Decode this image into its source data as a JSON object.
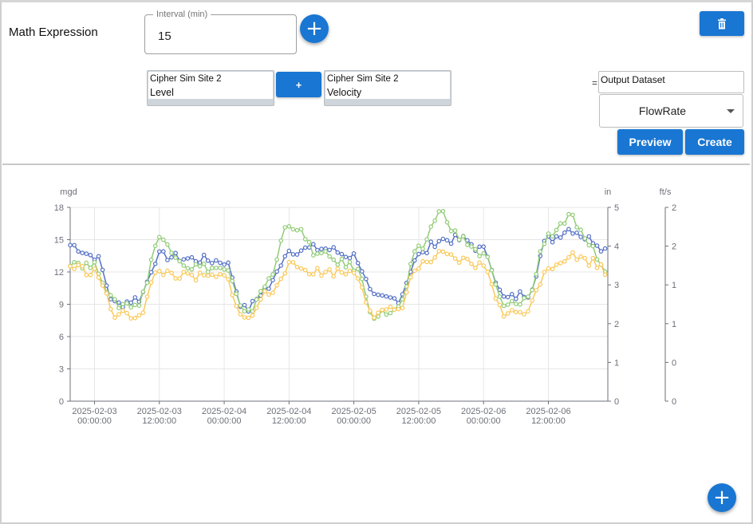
{
  "header": {
    "title": "Math Expression",
    "interval_label": "Interval (min)",
    "interval_value": "15",
    "add_icon": "plus-icon",
    "delete_icon": "trash-icon"
  },
  "expression": {
    "left": {
      "site": "Cipher Sim Site 2",
      "measure": "Level"
    },
    "operator": "+",
    "right": {
      "site": "Cipher Sim Site 2",
      "measure": "Velocity"
    },
    "equals": "=",
    "output_label": "Output Dataset",
    "output_select_value": "FlowRate",
    "preview_label": "Preview",
    "create_label": "Create"
  },
  "colors": {
    "accent": "#1976d2",
    "series_blue": "#5470c6",
    "series_green": "#91cc75",
    "series_yellow": "#fac858"
  },
  "chart_data": {
    "type": "line",
    "title": "",
    "x_tick_labels": [
      [
        "2025-02-03",
        "00:00:00"
      ],
      [
        "2025-02-03",
        "12:00:00"
      ],
      [
        "2025-02-04",
        "00:00:00"
      ],
      [
        "2025-02-04",
        "12:00:00"
      ],
      [
        "2025-02-05",
        "00:00:00"
      ],
      [
        "2025-02-05",
        "12:00:00"
      ],
      [
        "2025-02-06",
        "00:00:00"
      ],
      [
        "2025-02-06",
        "12:00:00"
      ]
    ],
    "x_range_hours": [
      -4.5,
      95
    ],
    "axes": [
      {
        "unit": "mgd",
        "ticks": [
          "0",
          "3",
          "6",
          "9",
          "12",
          "15",
          "18"
        ],
        "ylim": [
          0,
          18
        ]
      },
      {
        "unit": "in",
        "ticks": [
          "0",
          "1",
          "2",
          "3",
          "4",
          "5"
        ],
        "ylim": [
          0,
          5
        ]
      },
      {
        "unit": "ft/s",
        "ticks": [
          "0",
          "0",
          "1",
          "1",
          "2",
          "2"
        ],
        "ylim": [
          0,
          2
        ]
      }
    ],
    "grid": true,
    "series": [
      {
        "color": "#5470c6",
        "axis": 0,
        "x_hours": [
          -4.5,
          0,
          4,
          8,
          12,
          18,
          24,
          28,
          32,
          36,
          42,
          48,
          52,
          56,
          60,
          64,
          68,
          72,
          76,
          80,
          84,
          88,
          92,
          95
        ],
        "values": [
          14.5,
          13.5,
          9.0,
          9.5,
          13.5,
          13.2,
          13.0,
          8.5,
          10.5,
          14.0,
          14.2,
          13.5,
          9.5,
          9.5,
          13.5,
          15.0,
          15.0,
          14.0,
          9.5,
          10.0,
          15.0,
          16.0,
          15.0,
          14.0
        ]
      },
      {
        "color": "#91cc75",
        "axis": 0,
        "x_hours": [
          -4.5,
          0,
          4,
          8,
          12,
          18,
          24,
          28,
          32,
          36,
          42,
          48,
          52,
          56,
          60,
          64,
          68,
          72,
          76,
          80,
          84,
          88,
          92,
          95
        ],
        "values": [
          13.0,
          12.5,
          9.0,
          9.0,
          15.0,
          12.5,
          12.3,
          8.0,
          11.0,
          16.5,
          13.5,
          12.5,
          8.0,
          8.5,
          14.0,
          17.5,
          15.0,
          13.5,
          8.8,
          9.5,
          15.5,
          17.0,
          14.0,
          12.0
        ]
      },
      {
        "color": "#fac858",
        "axis": 0,
        "x_hours": [
          -4.5,
          0,
          4,
          8,
          12,
          18,
          24,
          28,
          32,
          36,
          42,
          48,
          52,
          56,
          60,
          64,
          68,
          72,
          76,
          80,
          84,
          88,
          92,
          95
        ],
        "values": [
          12.5,
          12.0,
          8.0,
          8.0,
          12.0,
          11.5,
          11.5,
          7.5,
          10.0,
          12.5,
          12.0,
          12.0,
          8.0,
          8.5,
          12.5,
          13.5,
          13.0,
          12.5,
          8.0,
          8.5,
          12.5,
          13.5,
          13.0,
          12.0
        ]
      }
    ]
  }
}
